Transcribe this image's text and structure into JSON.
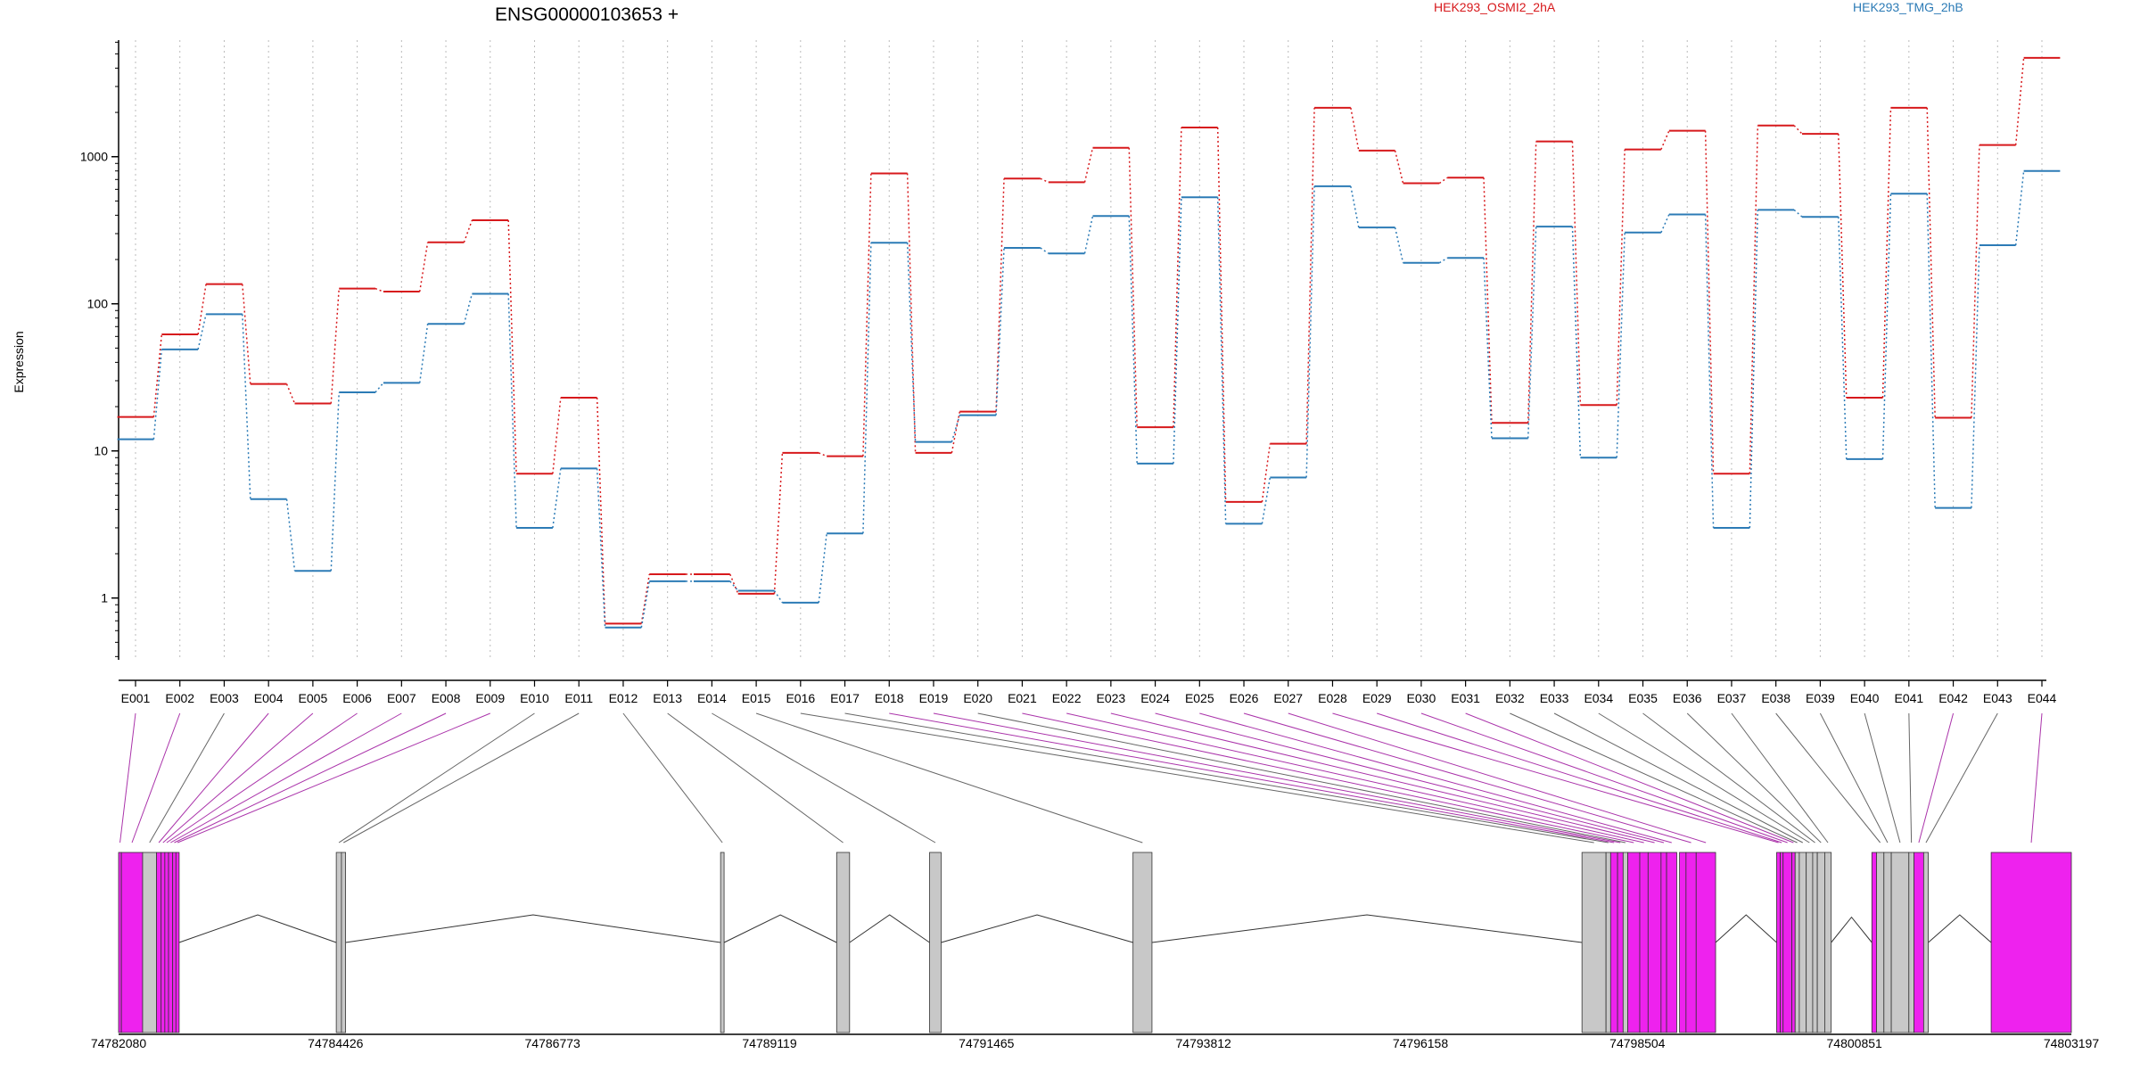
{
  "chart_data": {
    "type": "line",
    "title": "ENSG00000103653 +",
    "ylabel": "Expression",
    "y_scale": "log",
    "ylim": [
      0.38,
      6200
    ],
    "y_ticks": [
      1,
      10,
      100,
      1000
    ],
    "y_tick_labels": [
      "1",
      "10",
      "100",
      "1000"
    ],
    "grid": "vertical dotted lines at each exon",
    "categories": [
      "E001",
      "E002",
      "E003",
      "E004",
      "E005",
      "E006",
      "E007",
      "E008",
      "E009",
      "E010",
      "E011",
      "E012",
      "E013",
      "E014",
      "E015",
      "E016",
      "E017",
      "E018",
      "E019",
      "E020",
      "E021",
      "E022",
      "E023",
      "E024",
      "E025",
      "E026",
      "E027",
      "E028",
      "E029",
      "E030",
      "E031",
      "E032",
      "E033",
      "E034",
      "E035",
      "E036",
      "E037",
      "E038",
      "E039",
      "E040",
      "E041",
      "E042",
      "E043",
      "E044"
    ],
    "series": [
      {
        "name": "HEK293_OSMI2_2hA",
        "color": "#d7191c",
        "values": [
          17,
          62,
          136,
          28.5,
          21,
          127,
          121,
          262,
          370,
          7,
          23,
          0.67,
          1.45,
          1.45,
          1.07,
          9.7,
          9.2,
          770,
          9.7,
          18.5,
          710,
          670,
          1150,
          14.5,
          1580,
          4.5,
          11.2,
          2150,
          1100,
          660,
          720,
          15.5,
          1270,
          20.5,
          1120,
          1500,
          7,
          1630,
          1430,
          23,
          2150,
          16.8,
          1200,
          4700
        ]
      },
      {
        "name": "HEK293_TMG_2hB",
        "color": "#2c7bb6",
        "values": [
          12,
          49,
          85,
          4.7,
          1.53,
          25,
          29,
          73,
          117,
          3,
          7.6,
          0.63,
          1.3,
          1.3,
          1.12,
          0.93,
          2.75,
          260,
          11.5,
          17.5,
          240,
          220,
          395,
          8.2,
          530,
          3.2,
          6.6,
          630,
          330,
          190,
          205,
          12.2,
          335,
          9,
          305,
          405,
          3,
          435,
          390,
          8.8,
          560,
          4.1,
          250,
          800
        ]
      }
    ]
  },
  "gene_track": {
    "coordinate_labels": [
      "74782080",
      "74784426",
      "74786773",
      "74789119",
      "74791465",
      "74793812",
      "74796158",
      "74798504",
      "74800851",
      "74803197"
    ],
    "coord_range": [
      74782080,
      74803197
    ],
    "exon_colors": {
      "tested": "#c8c8c8",
      "highlighted": "#ee22ee"
    },
    "exons": [
      {
        "id": "E001",
        "start": 74782080,
        "end": 74782110,
        "highlight": true
      },
      {
        "id": "E002",
        "start": 74782110,
        "end": 74782340,
        "highlight": true
      },
      {
        "id": "E003",
        "start": 74782340,
        "end": 74782490,
        "highlight": false
      },
      {
        "id": "E004",
        "start": 74782490,
        "end": 74782540,
        "highlight": true
      },
      {
        "id": "E005",
        "start": 74782540,
        "end": 74782580,
        "highlight": true
      },
      {
        "id": "E006",
        "start": 74782580,
        "end": 74782620,
        "highlight": true
      },
      {
        "id": "E007",
        "start": 74782620,
        "end": 74782665,
        "highlight": true
      },
      {
        "id": "E008",
        "start": 74782665,
        "end": 74782700,
        "highlight": true
      },
      {
        "id": "E009",
        "start": 74782700,
        "end": 74782735,
        "highlight": true
      },
      {
        "id": "E010",
        "start": 74784434,
        "end": 74784490,
        "highlight": false
      },
      {
        "id": "E011",
        "start": 74784490,
        "end": 74784535,
        "highlight": false
      },
      {
        "id": "E012",
        "start": 74788590,
        "end": 74788628,
        "highlight": false
      },
      {
        "id": "E013",
        "start": 74789845,
        "end": 74789985,
        "highlight": false
      },
      {
        "id": "E014",
        "start": 74790850,
        "end": 74790975,
        "highlight": false
      },
      {
        "id": "E015",
        "start": 74793050,
        "end": 74793255,
        "highlight": false
      },
      {
        "id": "E016",
        "start": 74797905,
        "end": 74798165,
        "highlight": false
      },
      {
        "id": "E017",
        "start": 74798165,
        "end": 74798215,
        "highlight": false
      },
      {
        "id": "E018",
        "start": 74798215,
        "end": 74798290,
        "highlight": true
      },
      {
        "id": "E019",
        "start": 74798290,
        "end": 74798350,
        "highlight": true
      },
      {
        "id": "E020",
        "start": 74798350,
        "end": 74798400,
        "highlight": false
      },
      {
        "id": "E021",
        "start": 74798400,
        "end": 74798530,
        "highlight": true
      },
      {
        "id": "E022",
        "start": 74798530,
        "end": 74798620,
        "highlight": true
      },
      {
        "id": "E023",
        "start": 74798620,
        "end": 74798760,
        "highlight": true
      },
      {
        "id": "E024",
        "start": 74798760,
        "end": 74798820,
        "highlight": true
      },
      {
        "id": "E025",
        "start": 74798820,
        "end": 74798930,
        "highlight": true
      },
      {
        "id": "E026",
        "start": 74799030,
        "end": 74799140,
        "highlight": true
      },
      {
        "id": "E027",
        "start": 74799140,
        "end": 74799350,
        "highlight": true
      },
      {
        "id": "E028",
        "start": 74800010,
        "end": 74800050,
        "highlight": true
      },
      {
        "id": "E029",
        "start": 74800050,
        "end": 74800080,
        "highlight": true
      },
      {
        "id": "E030",
        "start": 74800080,
        "end": 74800175,
        "highlight": true
      },
      {
        "id": "E031",
        "start": 74800175,
        "end": 74800210,
        "highlight": true
      },
      {
        "id": "E032",
        "start": 74800210,
        "end": 74800255,
        "highlight": false
      },
      {
        "id": "E033",
        "start": 74800255,
        "end": 74800330,
        "highlight": false
      },
      {
        "id": "E034",
        "start": 74800330,
        "end": 74800400,
        "highlight": false
      },
      {
        "id": "E035",
        "start": 74800400,
        "end": 74800450,
        "highlight": false
      },
      {
        "id": "E036",
        "start": 74800450,
        "end": 74800530,
        "highlight": false
      },
      {
        "id": "E037",
        "start": 74800530,
        "end": 74800600,
        "highlight": false
      },
      {
        "id": "E038",
        "start": 74801090,
        "end": 74801170,
        "highlight": false
      },
      {
        "id": "E039",
        "start": 74801170,
        "end": 74801250,
        "highlight": false
      },
      {
        "id": "E040",
        "start": 74801250,
        "end": 74801440,
        "highlight": false
      },
      {
        "id": "E041",
        "start": 74801440,
        "end": 74801495,
        "highlight": false
      },
      {
        "id": "E042",
        "start": 74801495,
        "end": 74801600,
        "highlight": true
      },
      {
        "id": "E043",
        "start": 74801600,
        "end": 74801650,
        "highlight": false
      },
      {
        "id": "E044",
        "start": 74802330,
        "end": 74803197,
        "highlight": true
      }
    ],
    "extra_segments": [
      {
        "start": 74798960,
        "end": 74799030,
        "highlight": true
      },
      {
        "start": 74801040,
        "end": 74801090,
        "highlight": true
      }
    ]
  }
}
